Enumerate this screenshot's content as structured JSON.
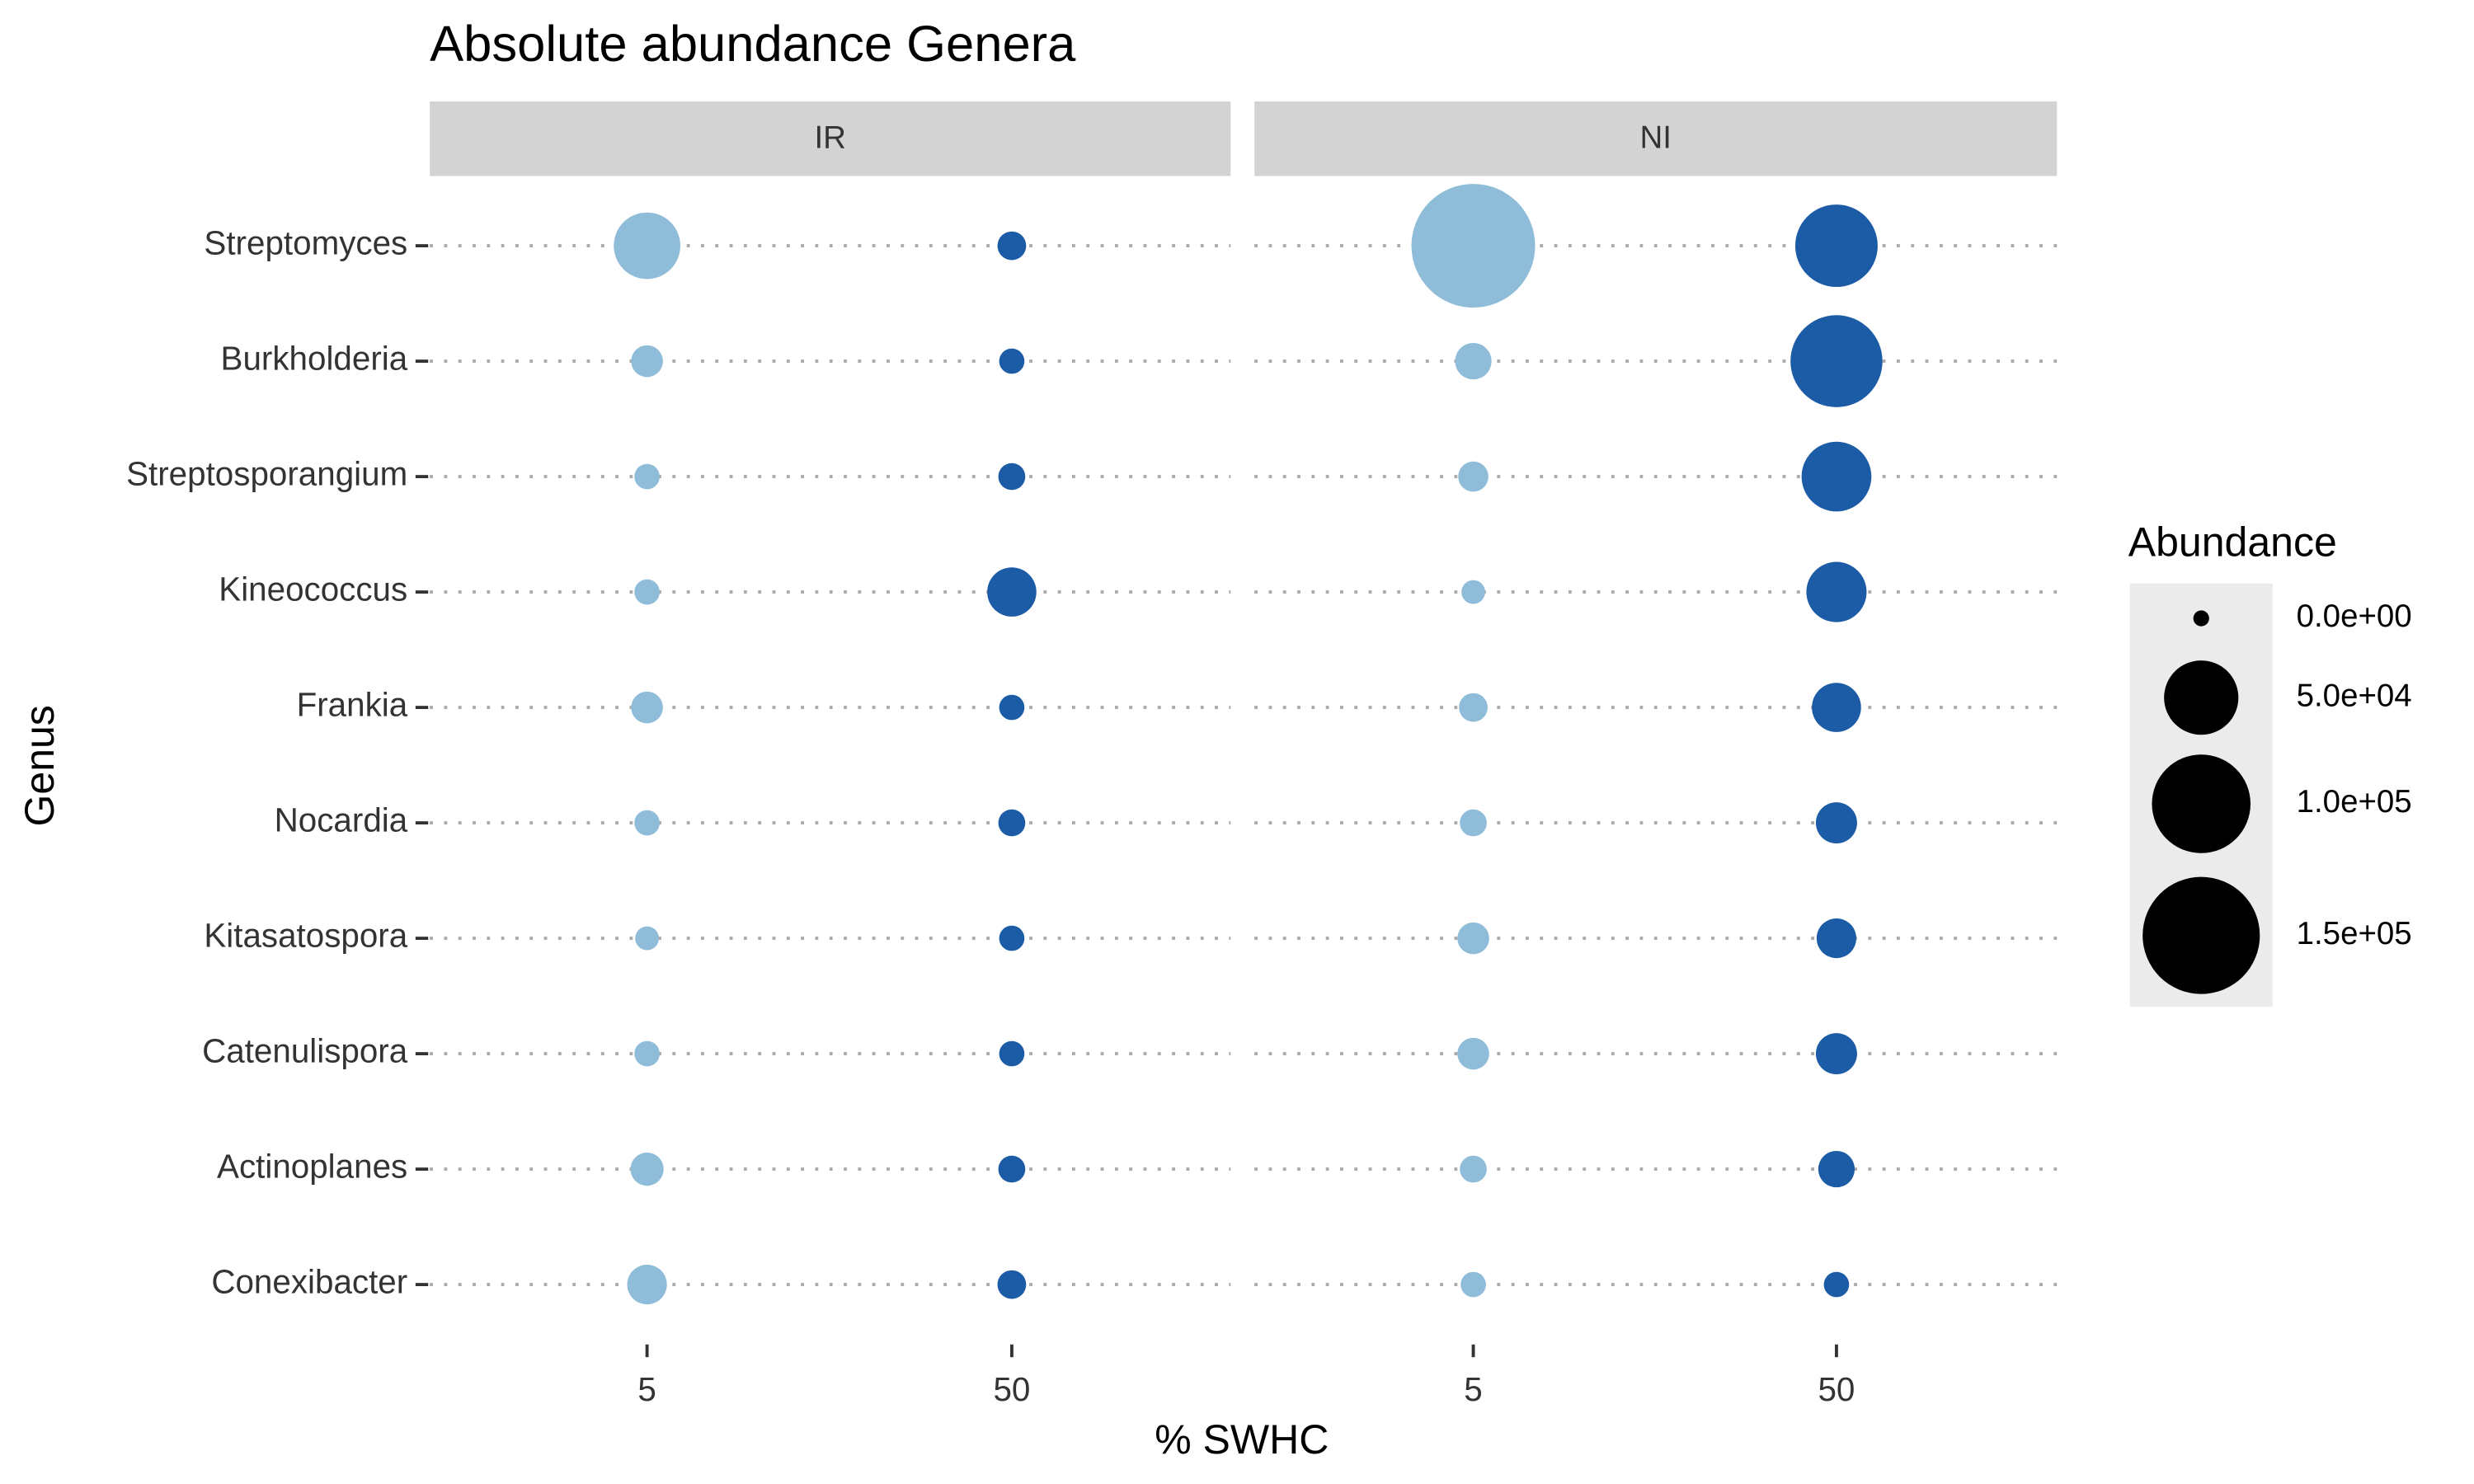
{
  "chart_data": {
    "type": "bubble",
    "title": "Absolute abundance Genera",
    "x_label": "% SWHC",
    "y_label": "Genus",
    "categories": [
      "Streptomyces",
      "Burkholderia",
      "Streptosporangium",
      "Kineococcus",
      "Frankia",
      "Nocardia",
      "Kitasatospora",
      "Catenulispora",
      "Actinoplanes",
      "Conexibacter"
    ],
    "facets": [
      {
        "name": "IR",
        "series": [
          {
            "name": "5",
            "color": "#8fbcd9",
            "values": [
              37600,
              3700,
              1300,
              1300,
              3700,
              1300,
              900,
              1300,
              4400,
              8300
            ]
          },
          {
            "name": "50",
            "color": "#1c5ba6",
            "values": [
              2400,
              1300,
              1800,
              16200,
              1300,
              1800,
              1300,
              1300,
              1800,
              2400
            ]
          }
        ]
      },
      {
        "name": "NI",
        "series": [
          {
            "name": "5",
            "color": "#8fbcd9",
            "values": [
              170000,
              6200,
              3000,
              900,
              2400,
              1800,
              3700,
              3700,
              1800,
              1300
            ]
          },
          {
            "name": "50",
            "color": "#1c5ba6",
            "values": [
              64800,
              84700,
              42500,
              28800,
              16200,
              9400,
              8300,
              9400,
              6200,
              1300
            ]
          }
        ]
      }
    ],
    "legend": {
      "title": "Abundance",
      "position": "right",
      "sizes": [
        {
          "value": 0,
          "label": "0.0e+00"
        },
        {
          "value": 50000,
          "label": "5.0e+04"
        },
        {
          "value": 100000,
          "label": "1.0e+05"
        },
        {
          "value": 150000,
          "label": "1.5e+05"
        }
      ]
    }
  }
}
